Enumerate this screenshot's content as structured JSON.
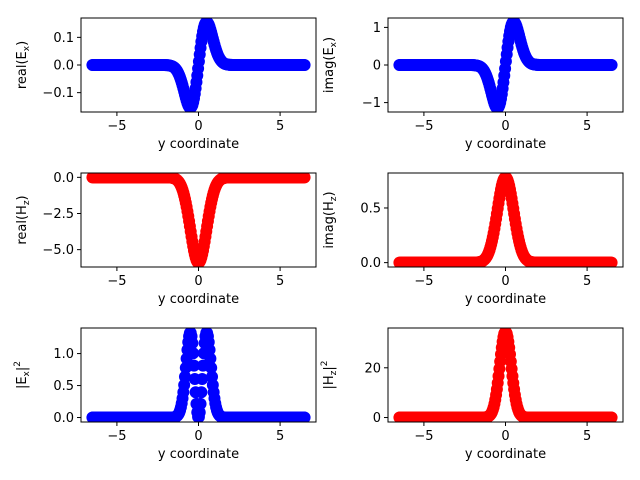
{
  "chart_data": [
    {
      "type": "scatter",
      "xlabel": "y coordinate",
      "ylabel": "real(E",
      "ylabel_sub": "x",
      "ylabel_close": ")",
      "xlim": [
        -7.2,
        7.2
      ],
      "ylim": [
        -0.17,
        0.17
      ],
      "xticks": [
        -5,
        0,
        5
      ],
      "xtick_labels": [
        "−5",
        "0",
        "5"
      ],
      "yticks": [
        -0.1,
        0.0,
        0.1
      ],
      "ytick_labels": [
        "−0.1",
        "0.0",
        "0.1"
      ],
      "color": "#0000ff",
      "y_range": [
        -6.5,
        6.5
      ],
      "profile": {
        "kind": "odd",
        "amplitude": 0.155,
        "width": 0.5
      }
    },
    {
      "type": "scatter",
      "xlabel": "y coordinate",
      "ylabel": "imag(E",
      "ylabel_sub": "x",
      "ylabel_close": ")",
      "xlim": [
        -7.2,
        7.2
      ],
      "ylim": [
        -1.25,
        1.25
      ],
      "xticks": [
        -5,
        0,
        5
      ],
      "xtick_labels": [
        "−5",
        "0",
        "5"
      ],
      "yticks": [
        -1,
        0,
        1
      ],
      "ytick_labels": [
        "−1",
        "0",
        "1"
      ],
      "color": "#0000ff",
      "y_range": [
        -6.5,
        6.5
      ],
      "profile": {
        "kind": "odd",
        "amplitude": 1.15,
        "width": 0.5
      }
    },
    {
      "type": "scatter",
      "xlabel": "y coordinate",
      "ylabel": "real(H",
      "ylabel_sub": "z",
      "ylabel_close": ")",
      "xlim": [
        -7.2,
        7.2
      ],
      "ylim": [
        -6.2,
        0.3
      ],
      "xticks": [
        -5,
        0,
        5
      ],
      "xtick_labels": [
        "−5",
        "0",
        "5"
      ],
      "yticks": [
        -5.0,
        -2.5,
        0.0
      ],
      "ytick_labels": [
        "−5.0",
        "−2.5",
        "0.0"
      ],
      "color": "#ff0000",
      "y_range": [
        -6.5,
        6.5
      ],
      "profile": {
        "kind": "even",
        "amplitude": -5.9,
        "width": 0.5
      }
    },
    {
      "type": "scatter",
      "xlabel": "y coordinate",
      "ylabel": "imag(H",
      "ylabel_sub": "z",
      "ylabel_close": ")",
      "xlim": [
        -7.2,
        7.2
      ],
      "ylim": [
        -0.04,
        0.82
      ],
      "xticks": [
        -5,
        0,
        5
      ],
      "xtick_labels": [
        "−5",
        "0",
        "5"
      ],
      "yticks": [
        0.0,
        0.5
      ],
      "ytick_labels": [
        "0.0",
        "0.5"
      ],
      "color": "#ff0000",
      "y_range": [
        -6.5,
        6.5
      ],
      "profile": {
        "kind": "even",
        "amplitude": 0.78,
        "width": 0.5
      }
    },
    {
      "type": "scatter",
      "xlabel": "y coordinate",
      "ylabel": "|E",
      "ylabel_sub": "x",
      "ylabel_close": "|",
      "ylabel_sup": "2",
      "xlim": [
        -7.2,
        7.2
      ],
      "ylim": [
        -0.07,
        1.4
      ],
      "xticks": [
        -5,
        0,
        5
      ],
      "xtick_labels": [
        "−5",
        "0",
        "5"
      ],
      "yticks": [
        0.0,
        0.5,
        1.0
      ],
      "ytick_labels": [
        "0.0",
        "0.5",
        "1.0"
      ],
      "color": "#0000ff",
      "y_range": [
        -6.5,
        6.5
      ],
      "profile": {
        "kind": "odd_squared",
        "amplitude": 1.33,
        "width": 0.5
      }
    },
    {
      "type": "scatter",
      "xlabel": "y coordinate",
      "ylabel": "|H",
      "ylabel_sub": "z",
      "ylabel_close": "|",
      "ylabel_sup": "2",
      "xlim": [
        -7.2,
        7.2
      ],
      "ylim": [
        -1.8,
        36.0
      ],
      "xticks": [
        -5,
        0,
        5
      ],
      "xtick_labels": [
        "−5",
        "0",
        "5"
      ],
      "yticks": [
        0,
        20
      ],
      "ytick_labels": [
        "0",
        "20"
      ],
      "color": "#ff0000",
      "y_range": [
        -6.5,
        6.5
      ],
      "profile": {
        "kind": "even_squared",
        "amplitude": 34.5,
        "width": 0.5
      }
    }
  ]
}
